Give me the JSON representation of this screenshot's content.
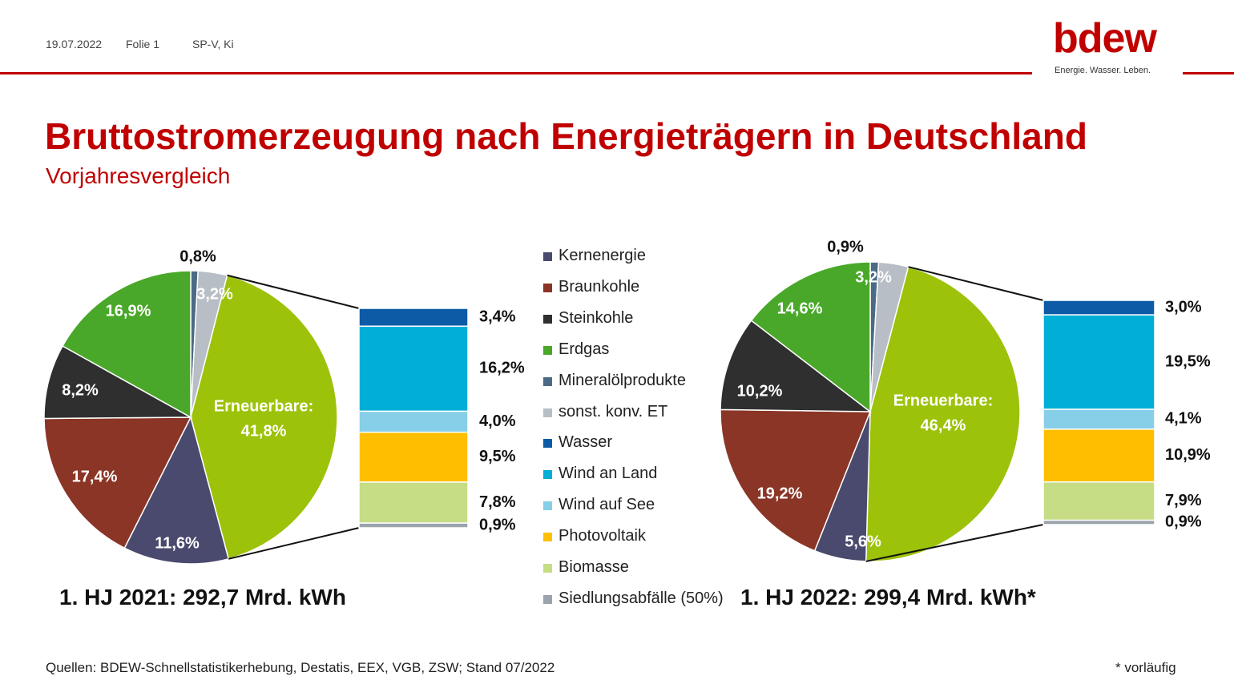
{
  "header": {
    "date": "19.07.2022",
    "slide": "Folie 1",
    "author": "SP-V, Ki"
  },
  "logo": {
    "wordmark": "bdew",
    "tagline": "Energie. Wasser. Leben."
  },
  "title": "Bruttostromerzeugung nach Energieträgern in Deutschland",
  "subtitle": "Vorjahresvergleich",
  "footer": {
    "sources": "Quellen: BDEW-Schnellstatistikerhebung, Destatis, EEX, VGB, ZSW; Stand 07/2022",
    "note": "* vorläufig"
  },
  "colors": {
    "accent": "#c00000",
    "Kernenergie": "#4a4a6e",
    "Braunkohle": "#8b3526",
    "Steinkohle": "#2f2f2f",
    "Erdgas": "#49a829",
    "Mineralölprodukte": "#4c6a85",
    "sonst. konv. ET": "#b8bec6",
    "Erneuerbare": "#9cc20a",
    "Wasser": "#0d5ba6",
    "Wind an Land": "#00aed6",
    "Wind auf See": "#87cfe8",
    "Photovoltaik": "#ffbf00",
    "Biomasse": "#c6dc85",
    "Siedlungsabfälle (50%)": "#9ba4ad"
  },
  "legend": [
    "Kernenergie",
    "Braunkohle",
    "Steinkohle",
    "Erdgas",
    "Mineralölprodukte",
    "sonst. konv. ET",
    "Wasser",
    "Wind an Land",
    "Wind auf See",
    "Photovoltaik",
    "Biomasse",
    "Siedlungsabfälle (50%)"
  ],
  "chart_data": [
    {
      "type": "pie",
      "caption": "1. HJ 2021: 292,7 Mrd. kWh",
      "total_twh": 292.7,
      "renewables_label": "Erneuerbare:",
      "slices": [
        {
          "name": "Mineralölprodukte",
          "value": 0.8,
          "label": "0,8%"
        },
        {
          "name": "sonst. konv. ET",
          "value": 3.2,
          "label": "3,2%"
        },
        {
          "name": "Erneuerbare",
          "value": 41.8,
          "label": "41,8%"
        },
        {
          "name": "Kernenergie",
          "value": 11.6,
          "label": "11,6%"
        },
        {
          "name": "Braunkohle",
          "value": 17.4,
          "label": "17,4%"
        },
        {
          "name": "Steinkohle",
          "value": 8.2,
          "label": "8,2%"
        },
        {
          "name": "Erdgas",
          "value": 16.9,
          "label": "16,9%"
        }
      ],
      "renewables_breakdown": [
        {
          "name": "Wasser",
          "value": 3.4,
          "label": "3,4%"
        },
        {
          "name": "Wind an Land",
          "value": 16.2,
          "label": "16,2%"
        },
        {
          "name": "Wind auf See",
          "value": 4.0,
          "label": "4,0%"
        },
        {
          "name": "Photovoltaik",
          "value": 9.5,
          "label": "9,5%"
        },
        {
          "name": "Biomasse",
          "value": 7.8,
          "label": "7,8%"
        },
        {
          "name": "Siedlungsabfälle (50%)",
          "value": 0.9,
          "label": "0,9%"
        }
      ]
    },
    {
      "type": "pie",
      "caption": "1. HJ 2022: 299,4 Mrd. kWh*",
      "total_twh": 299.4,
      "renewables_label": "Erneuerbare:",
      "slices": [
        {
          "name": "Mineralölprodukte",
          "value": 0.9,
          "label": "0,9%"
        },
        {
          "name": "sonst. konv. ET",
          "value": 3.2,
          "label": "3,2%"
        },
        {
          "name": "Erneuerbare",
          "value": 46.4,
          "label": "46,4%"
        },
        {
          "name": "Kernenergie",
          "value": 5.6,
          "label": "5,6%"
        },
        {
          "name": "Braunkohle",
          "value": 19.2,
          "label": "19,2%"
        },
        {
          "name": "Steinkohle",
          "value": 10.2,
          "label": "10,2%"
        },
        {
          "name": "Erdgas",
          "value": 14.6,
          "label": "14,6%"
        }
      ],
      "renewables_breakdown": [
        {
          "name": "Wasser",
          "value": 3.0,
          "label": "3,0%"
        },
        {
          "name": "Wind an Land",
          "value": 19.5,
          "label": "19,5%"
        },
        {
          "name": "Wind auf See",
          "value": 4.1,
          "label": "4,1%"
        },
        {
          "name": "Photovoltaik",
          "value": 10.9,
          "label": "10,9%"
        },
        {
          "name": "Biomasse",
          "value": 7.9,
          "label": "7,9%"
        },
        {
          "name": "Siedlungsabfälle (50%)",
          "value": 0.9,
          "label": "0,9%"
        }
      ]
    }
  ]
}
